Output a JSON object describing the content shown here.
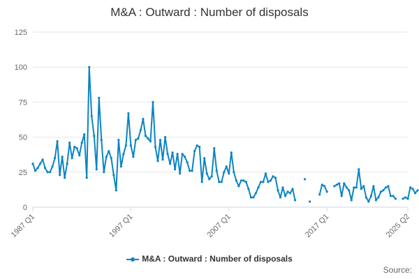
{
  "chart_data": {
    "type": "line",
    "title": "M&A : Outward : Number of disposals",
    "xlabel": "",
    "ylabel": "",
    "ylim": [
      0,
      125
    ],
    "yticks": [
      "0",
      "25",
      "50",
      "75",
      "100",
      "125"
    ],
    "xticks": [
      "1987 Q1",
      "1997 Q1",
      "2007 Q1",
      "2017 Q1",
      "2025 Q2"
    ],
    "x_range": [
      "1987 Q1",
      "2025 Q2"
    ],
    "grid": true,
    "legend_position": "bottom",
    "series": [
      {
        "name": "M&A : Outward : Number of disposals",
        "color": "#0b84c4",
        "start": "1987 Q1",
        "values": [
          31,
          26,
          28,
          31,
          34,
          28,
          25,
          25,
          29,
          35,
          47,
          23,
          36,
          21,
          31,
          46,
          35,
          43,
          42,
          37,
          46,
          52,
          21,
          100,
          65,
          51,
          27,
          78,
          48,
          25,
          36,
          40,
          35,
          23,
          12,
          48,
          29,
          38,
          44,
          67,
          44,
          36,
          48,
          49,
          55,
          63,
          51,
          49,
          47,
          75,
          43,
          33,
          48,
          34,
          50,
          38,
          31,
          39,
          27,
          38,
          24,
          38,
          36,
          32,
          26,
          26,
          40,
          44,
          43,
          18,
          35,
          24,
          20,
          22,
          42,
          26,
          18,
          18,
          25,
          29,
          24,
          39,
          25,
          19,
          15,
          19,
          19,
          18,
          13,
          7,
          7,
          10,
          14,
          18,
          18,
          24,
          18,
          19,
          22,
          21,
          12,
          7,
          14,
          8,
          11,
          10,
          13,
          5,
          null,
          null,
          null,
          20,
          null,
          4,
          null,
          null,
          null,
          9,
          16,
          15,
          11,
          null,
          null,
          15,
          16,
          17,
          8,
          17,
          14,
          12,
          5,
          14,
          14,
          27,
          13,
          15,
          7,
          4,
          8,
          15,
          5,
          7,
          11,
          12,
          14,
          15,
          8,
          8,
          6,
          null,
          null,
          6,
          7,
          6,
          14,
          13,
          10,
          12
        ]
      }
    ]
  },
  "source_label": "Source:"
}
